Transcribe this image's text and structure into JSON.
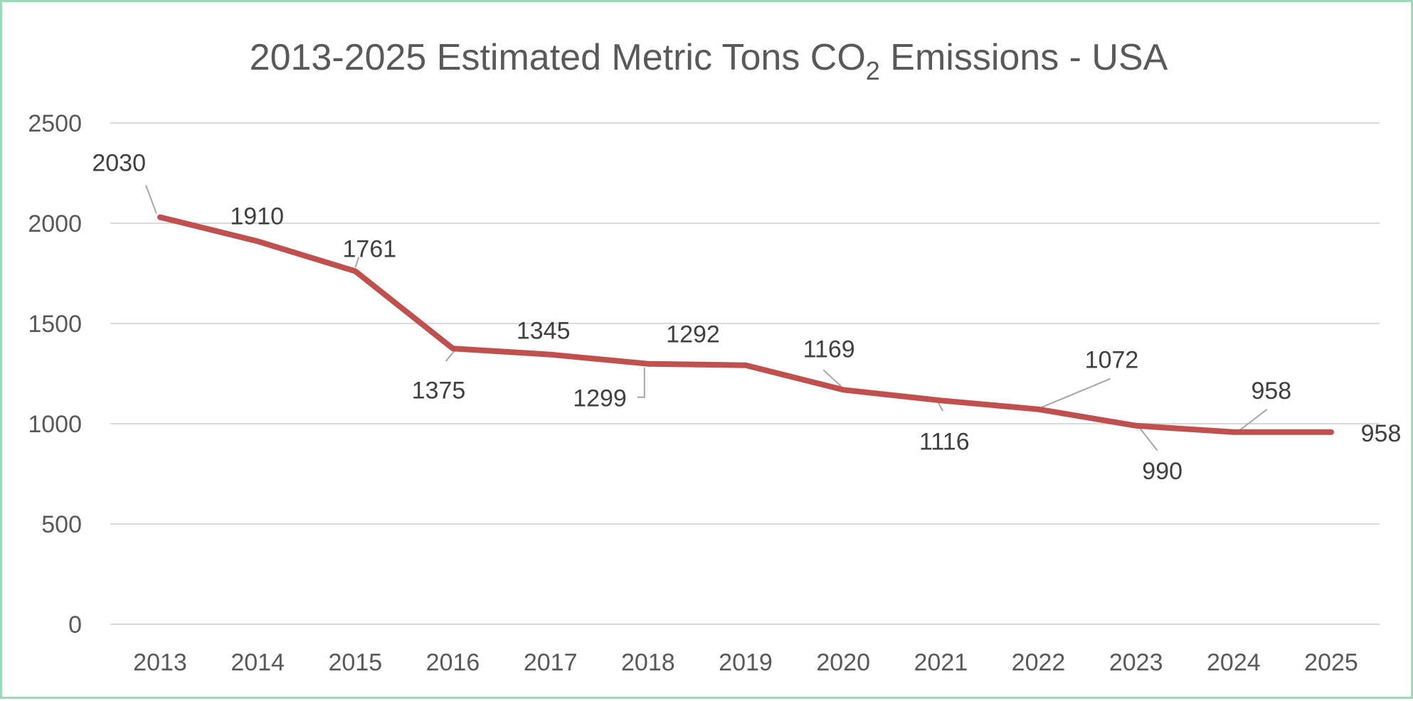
{
  "chart_data": {
    "type": "line",
    "title": "2013-2025 Estimated Metric Tons CO",
    "title_subscript": "2",
    "title_suffix": " Emissions - USA",
    "xlabel": "",
    "ylabel": "",
    "categories": [
      "2013",
      "2014",
      "2015",
      "2016",
      "2017",
      "2018",
      "2019",
      "2020",
      "2021",
      "2022",
      "2023",
      "2024",
      "2025"
    ],
    "series": [
      {
        "values": [
          2030,
          1910,
          1761,
          1375,
          1345,
          1299,
          1292,
          1169,
          1116,
          1072,
          990,
          958,
          958
        ],
        "color": "#c0504d"
      }
    ],
    "ylim": [
      0,
      2500
    ],
    "yticks": [
      0,
      500,
      1000,
      1500,
      2000,
      2500
    ],
    "grid": true,
    "legend": "none",
    "frame_color": "#9fd9bc"
  }
}
